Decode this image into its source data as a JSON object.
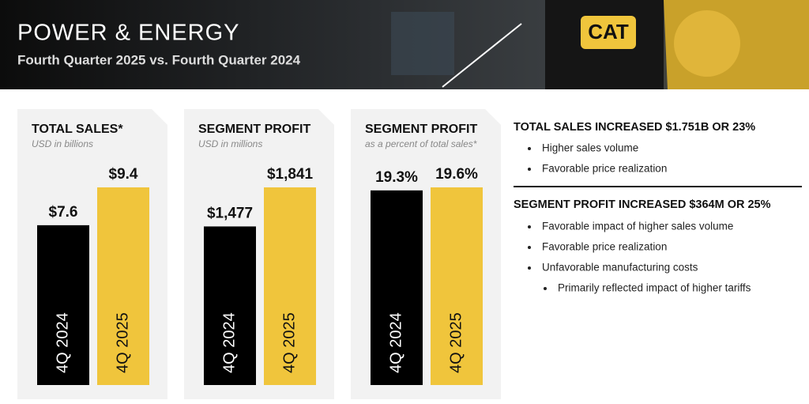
{
  "header": {
    "title": "POWER & ENERGY",
    "subtitle": "Fourth Quarter 2025 vs. Fourth Quarter 2024",
    "logo": "CAT"
  },
  "chart_data": [
    {
      "type": "bar",
      "title": "TOTAL SALES*",
      "subtitle": "USD in billions",
      "categories": [
        "4Q 2024",
        "4Q 2025"
      ],
      "values": [
        7.6,
        9.4
      ],
      "value_labels": [
        "$7.6",
        "$9.4"
      ],
      "colors": [
        "#000000",
        "#f0c53c"
      ]
    },
    {
      "type": "bar",
      "title": "SEGMENT PROFIT",
      "subtitle": "USD in millions",
      "categories": [
        "4Q 2024",
        "4Q 2025"
      ],
      "values": [
        1477,
        1841
      ],
      "value_labels": [
        "$1,477",
        "$1,841"
      ],
      "colors": [
        "#000000",
        "#f0c53c"
      ]
    },
    {
      "type": "bar",
      "title": "SEGMENT PROFIT",
      "subtitle": "as a percent of total sales*",
      "categories": [
        "4Q 2024",
        "4Q 2025"
      ],
      "values": [
        19.3,
        19.6
      ],
      "value_labels": [
        "19.3%",
        "19.6%"
      ],
      "colors": [
        "#000000",
        "#f0c53c"
      ]
    }
  ],
  "notes": [
    {
      "heading": "TOTAL SALES INCREASED $1.751B OR 23%",
      "bullets": [
        "Higher sales volume",
        "Favorable price realization"
      ]
    },
    {
      "heading": "SEGMENT PROFIT INCREASED $364M OR 25%",
      "bullets": [
        "Favorable impact of higher sales volume",
        "Favorable price realization",
        "Unfavorable manufacturing costs"
      ],
      "sub_bullets": [
        "Primarily reflected impact of higher tariffs"
      ]
    }
  ]
}
